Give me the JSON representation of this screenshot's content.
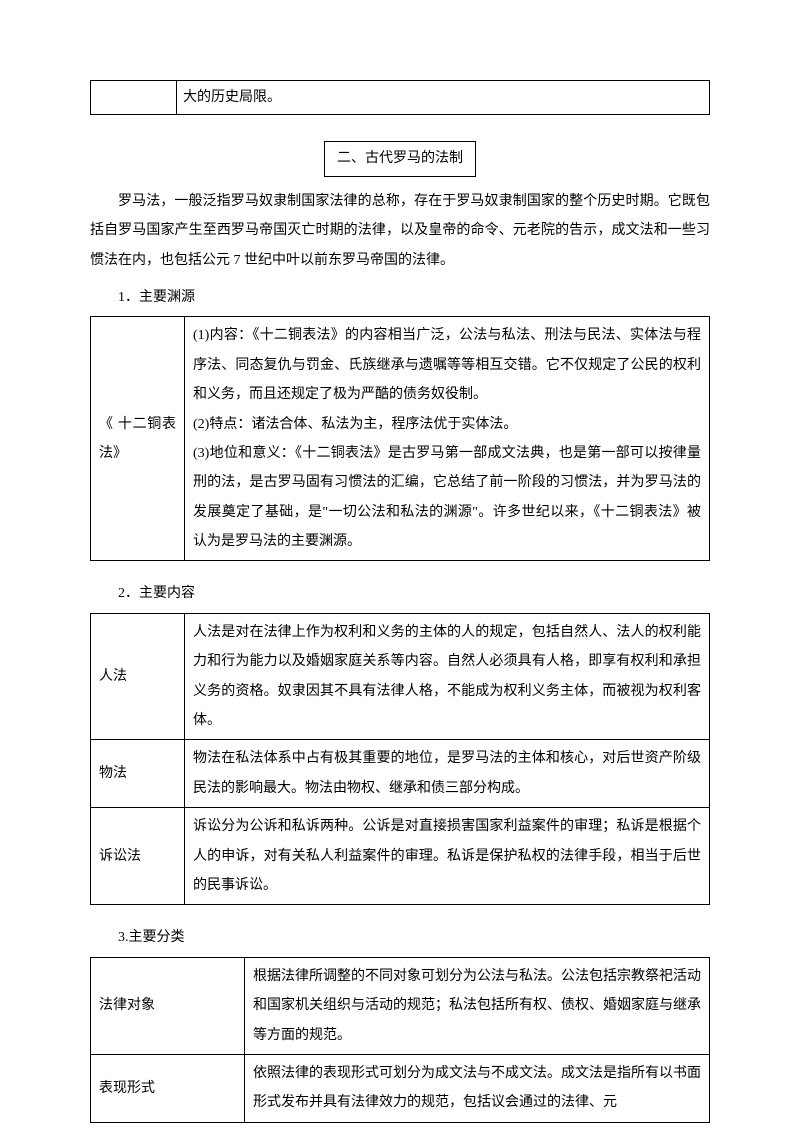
{
  "top_fragment": "大的历史局限。",
  "section_title": "二、古代罗马的法制",
  "intro": "罗马法，一般泛指罗马奴隶制国家法律的总称，存在于罗马奴隶制国家的整个历史时期。它既包括自罗马国家产生至西罗马帝国灭亡时期的法律，以及皇帝的命令、元老院的告示，成文法和一些习惯法在内，也包括公元 7 世纪中叶以前东罗马帝国的法律。",
  "s1": {
    "heading": "1．主要渊源",
    "label": "《 十二铜表法》",
    "content": "(1)内容：《十二铜表法》的内容相当广泛，公法与私法、刑法与民法、实体法与程序法、同态复仇与罚金、氏族继承与遗嘱等等相互交错。它不仅规定了公民的权利和义务，而且还规定了极为严酷的债务奴役制。\n(2)特点：诸法合体、私法为主，程序法优于实体法。\n(3)地位和意义：《十二铜表法》是古罗马第一部成文法典，也是第一部可以按律量刑的法，是古罗马固有习惯法的汇编，它总结了前一阶段的习惯法，并为罗马法的发展奠定了基础，是\"一切公法和私法的渊源\"。许多世纪以来，《十二铜表法》被认为是罗马法的主要渊源。"
  },
  "s2": {
    "heading": "2．主要内容",
    "rows": [
      {
        "label": "人法",
        "content": "人法是对在法律上作为权利和义务的主体的人的规定，包括自然人、法人的权利能力和行为能力以及婚姻家庭关系等内容。自然人必须具有人格，即享有权利和承担义务的资格。奴隶因其不具有法律人格，不能成为权利义务主体，而被视为权利客体。"
      },
      {
        "label": "物法",
        "content": "物法在私法体系中占有极其重要的地位，是罗马法的主体和核心，对后世资产阶级民法的影响最大。物法由物权、继承和债三部分构成。"
      },
      {
        "label": "诉讼法",
        "content": "诉讼分为公诉和私诉两种。公诉是对直接损害国家利益案件的审理；私诉是根据个人的申诉，对有关私人利益案件的审理。私诉是保护私权的法律手段，相当于后世的民事诉讼。"
      }
    ]
  },
  "s3": {
    "heading": "3.主要分类",
    "rows": [
      {
        "label": "法律对象",
        "content": "根据法律所调整的不同对象可划分为公法与私法。公法包括宗教祭祀活动和国家机关组织与活动的规范；私法包括所有权、债权、婚姻家庭与继承等方面的规范。"
      },
      {
        "label": "表现形式",
        "content": "依照法律的表现形式可划分为成文法与不成文法。成文法是指所有以书面形式发布并具有法律效力的规范，包括议会通过的法律、元"
      }
    ]
  }
}
